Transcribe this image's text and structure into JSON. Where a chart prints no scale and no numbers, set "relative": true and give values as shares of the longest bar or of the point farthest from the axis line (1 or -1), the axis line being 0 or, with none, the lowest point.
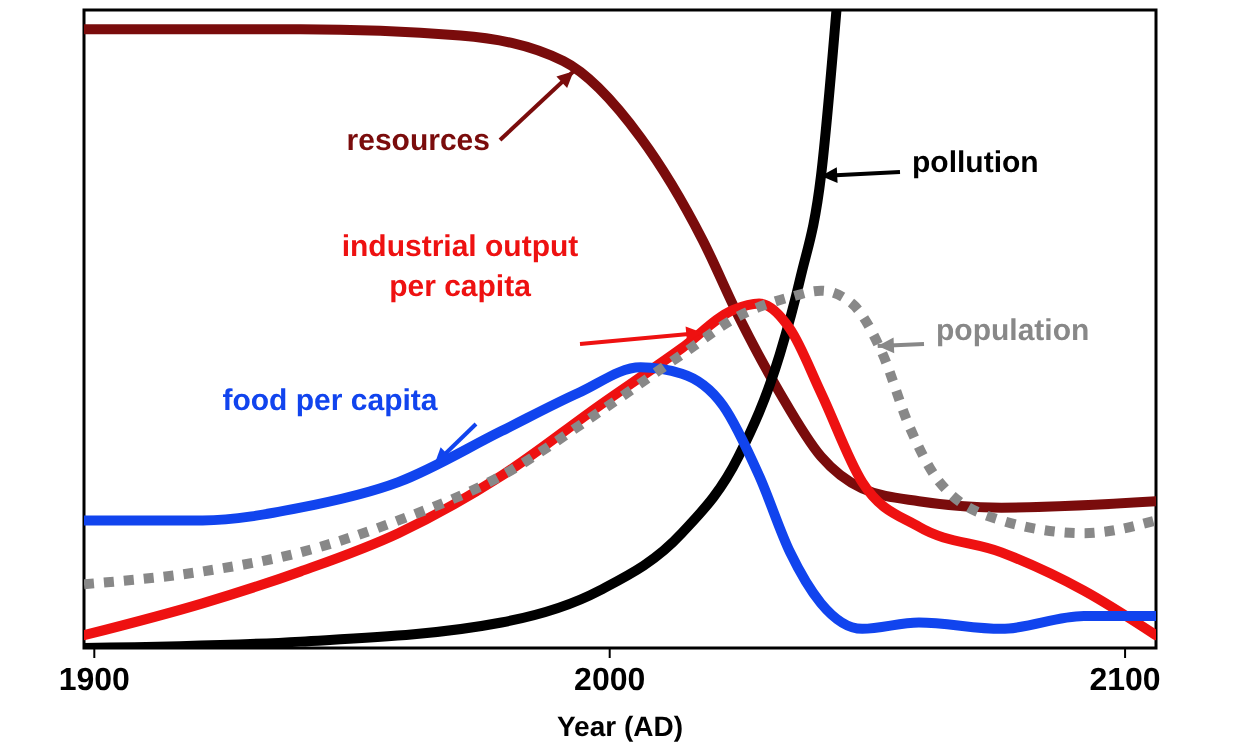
{
  "chart_data": {
    "type": "line",
    "relative": true,
    "xlabel": "Year (AD)",
    "xlim": [
      1898,
      2106
    ],
    "xticks": [
      1900,
      2000,
      2100
    ],
    "grid": false,
    "legend": "right",
    "tick_labels": "x",
    "series": [
      {
        "name": "resources",
        "color": "#7a0c0c",
        "x": [
          1898,
          1940,
          1971,
          1991,
          2006,
          2018,
          2025,
          2033,
          2041,
          2049,
          2060,
          2076,
          2106
        ],
        "values": [
          0.97,
          0.97,
          0.96,
          0.92,
          0.8,
          0.64,
          0.52,
          0.4,
          0.3,
          0.25,
          0.23,
          0.22,
          0.23
        ]
      },
      {
        "name": "pollution",
        "color": "#000000",
        "x": [
          1898,
          1940,
          1979,
          1998,
          2014,
          2025,
          2033,
          2037,
          2041,
          2044
        ],
        "values": [
          0,
          0.01,
          0.04,
          0.09,
          0.18,
          0.3,
          0.46,
          0.58,
          0.74,
          1
        ]
      },
      {
        "name": "industrial output per capita",
        "color": "#ee1111",
        "x": [
          1898,
          1921,
          1940,
          1959,
          1979,
          1998,
          2014,
          2024,
          2029,
          2035,
          2041,
          2049,
          2060,
          2076,
          2092,
          2106
        ],
        "values": [
          0.02,
          0.07,
          0.12,
          0.18,
          0.27,
          0.38,
          0.47,
          0.53,
          0.54,
          0.5,
          0.4,
          0.26,
          0.19,
          0.15,
          0.09,
          0.02
        ]
      },
      {
        "name": "food per capita",
        "color": "#1144ee",
        "x": [
          1898,
          1921,
          1940,
          1959,
          1979,
          1994,
          2006,
          2014,
          2022,
          2029,
          2035,
          2041,
          2049,
          2060,
          2076,
          2092,
          2106
        ],
        "values": [
          0.2,
          0.2,
          0.22,
          0.26,
          0.34,
          0.4,
          0.44,
          0.43,
          0.38,
          0.27,
          0.15,
          0.07,
          0.03,
          0.04,
          0.03,
          0.05,
          0.05
        ]
      },
      {
        "name": "population",
        "color": "#888888",
        "line_style": "dotted",
        "x": [
          1898,
          1921,
          1940,
          1959,
          1979,
          1998,
          2014,
          2025,
          2035,
          2041,
          2047,
          2053,
          2058,
          2064,
          2076,
          2092,
          2106
        ],
        "values": [
          0.1,
          0.12,
          0.15,
          0.2,
          0.27,
          0.37,
          0.46,
          0.52,
          0.55,
          0.56,
          0.54,
          0.46,
          0.35,
          0.26,
          0.2,
          0.18,
          0.2
        ]
      }
    ]
  }
}
